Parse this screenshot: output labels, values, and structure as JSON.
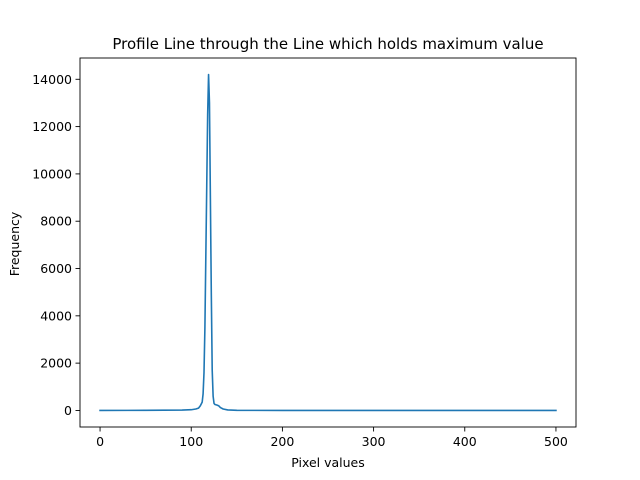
{
  "chart_data": {
    "type": "line",
    "title": "Profile Line through the Line which holds maximum value",
    "xlabel": "Pixel values",
    "ylabel": "Frequency",
    "xlim": [
      -22,
      522
    ],
    "ylim": [
      -700,
      14900
    ],
    "xticks": [
      0,
      100,
      200,
      300,
      400,
      500
    ],
    "yticks": [
      0,
      2000,
      4000,
      6000,
      8000,
      10000,
      12000,
      14000
    ],
    "xtick_labels": [
      "0",
      "100",
      "200",
      "300",
      "400",
      "500"
    ],
    "ytick_labels": [
      "0",
      "2000",
      "4000",
      "6000",
      "8000",
      "10000",
      "12000",
      "14000"
    ],
    "grid": false,
    "legend": "none",
    "series": [
      {
        "color": "#1f77b4",
        "x": [
          0,
          50,
          90,
          100,
          105,
          108,
          110,
          112,
          113,
          114,
          115,
          116,
          117,
          118,
          119,
          120,
          121,
          122,
          123,
          124,
          125,
          126,
          127,
          128,
          130,
          132,
          135,
          140,
          150,
          200,
          300,
          400,
          500
        ],
        "y": [
          0,
          5,
          15,
          30,
          60,
          100,
          200,
          350,
          700,
          1600,
          3500,
          6500,
          9500,
          12500,
          14200,
          13000,
          9000,
          5000,
          1700,
          600,
          300,
          250,
          240,
          230,
          200,
          120,
          60,
          20,
          5,
          0,
          0,
          0,
          0
        ]
      }
    ]
  }
}
